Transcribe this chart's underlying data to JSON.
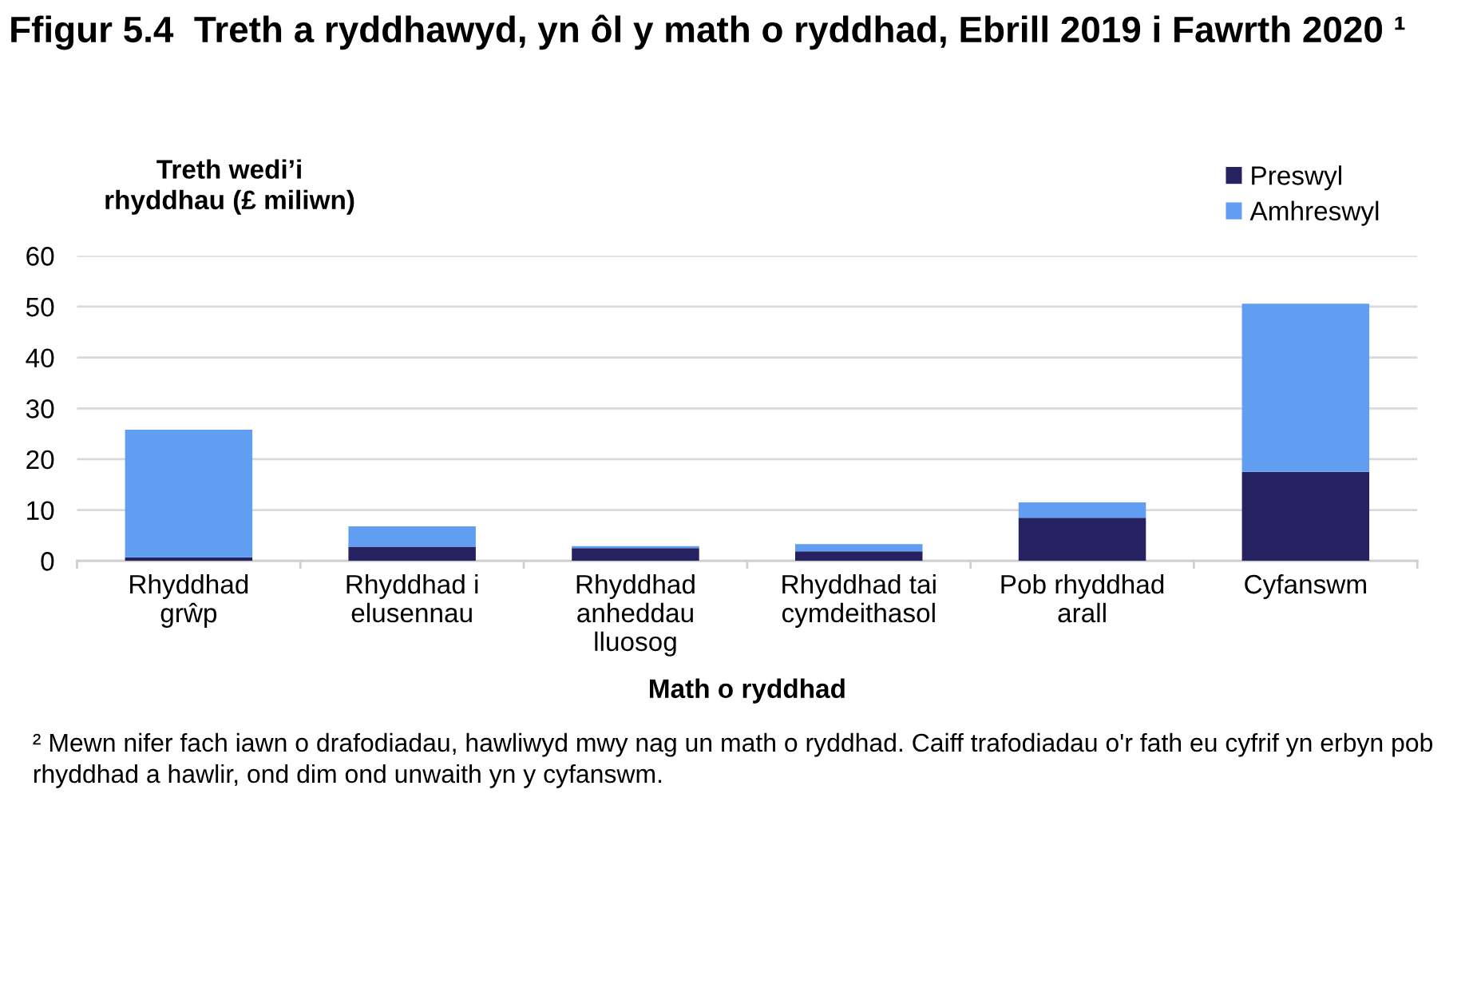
{
  "chart_data": {
    "type": "bar",
    "title": "Ffigur 5.4  Treth a ryddhawyd, yn ôl y math o ryddhad, Ebrill 2019 i Fawrth 2020 ¹",
    "ylabel": "Treth wedi’i\nrhyddhau (£ miliwn)",
    "xlabel": "Math o ryddhad",
    "categories": [
      "Rhyddhad\ngrŵp",
      "Rhyddhad i\nelusennau",
      "Rhyddhad\nanheddau\nlluosog",
      "Rhyddhad tai\ncymdeithasol",
      "Pob rhyddhad\narall",
      "Cyfanswm"
    ],
    "series": [
      {
        "name": "Preswyl",
        "color": "#262262",
        "values": [
          0.7,
          2.8,
          2.5,
          1.9,
          8.5,
          17.5
        ]
      },
      {
        "name": "Amhreswyl",
        "color": "#619ef2",
        "values": [
          25.1,
          4.0,
          0.4,
          1.4,
          3.0,
          33.1
        ]
      }
    ],
    "stacked": true,
    "ylim": [
      0,
      60
    ],
    "yticks": [
      0,
      10,
      20,
      30,
      40,
      50,
      60
    ],
    "grid": "y",
    "legend": "top right",
    "annotations": [
      "² Mewn nifer fach iawn o drafodiadau, hawliwyd mwy nag un math o ryddhad. Caiff trafodiadau o'r fath eu cyfrif yn erbyn pob rhyddhad a hawlir, ond dim ond unwaith yn y cyfanswm."
    ]
  }
}
